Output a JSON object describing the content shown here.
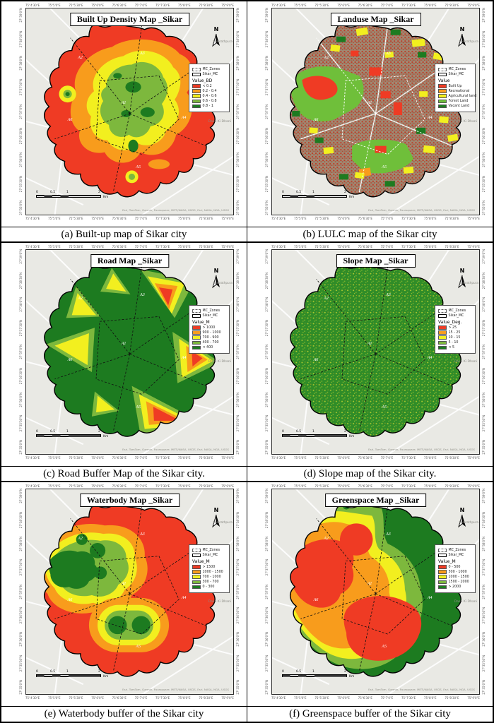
{
  "figure": {
    "north_label": "N",
    "place_near_north": "Samrathpura",
    "place_east": "Dasa Ki Dhani",
    "attribution": "Esri, TomTom, Garmin, Foursquare, METI/NASA, USGS, Esri, NASA, NGA, USGS",
    "scalebar": {
      "labels": [
        "0",
        "0.5",
        "1",
        "2"
      ],
      "unit": "Km"
    },
    "ticks": {
      "top": [
        "75°4'30\"E",
        "75°5'0\"E",
        "75°5'30\"E",
        "75°6'0\"E",
        "75°6'30\"E",
        "75°7'0\"E",
        "75°7'30\"E",
        "75°8'0\"E",
        "75°8'30\"E",
        "75°9'0\"E"
      ],
      "side": [
        "27°39'0\"N",
        "27°38'30\"N",
        "27°38'0\"N",
        "27°37'30\"N",
        "27°37'0\"N",
        "27°36'30\"N",
        "27°36'0\"N",
        "27°35'30\"N",
        "27°35'0\"N"
      ]
    }
  },
  "panels": [
    {
      "id": "a",
      "title": "Built Up Density Map _Sikar",
      "caption": "(a)  Built-up map of Sikar city",
      "legend": {
        "zones_label": "MC_Zones",
        "boundary_label": "Sikar_MC",
        "value_label": "Value_BD",
        "classes": [
          {
            "label": "< 0.2",
            "color": "#ef3b24"
          },
          {
            "label": "0.2 - 0.4",
            "color": "#f89c1c"
          },
          {
            "label": "0.4 - 0.6",
            "color": "#f2ef1f"
          },
          {
            "label": "0.6 - 0.8",
            "color": "#7db83d"
          },
          {
            "label": "0.8 - 1",
            "color": "#1d7b20"
          }
        ]
      },
      "zone_labels": [
        "A1",
        "A2",
        "A3",
        "A4",
        "A5",
        "A6"
      ]
    },
    {
      "id": "b",
      "title": "Landuse Map _Sikar",
      "caption": "(b)  LULC map of the Sikar city",
      "legend": {
        "zones_label": "MC_Zones",
        "boundary_label": "Sikar_MC",
        "value_label": "Value",
        "classes": [
          {
            "label": "Built Up",
            "color": "#ef3b24"
          },
          {
            "label": "Recreational",
            "color": "#f89c1c"
          },
          {
            "label": "Agricultural land",
            "color": "#f2ef1f"
          },
          {
            "label": "Forest Land",
            "color": "#6fbf3a"
          },
          {
            "label": "Vacant Land",
            "color": "#1d7b20"
          }
        ]
      },
      "zone_labels": [
        "A1",
        "A2",
        "A3",
        "A4",
        "A5",
        "A6"
      ]
    },
    {
      "id": "c",
      "title": "Road Map _Sikar",
      "caption": "(c) Road Buffer Map of the Sikar city.",
      "legend": {
        "zones_label": "MC_Zones",
        "boundary_label": "Sikar_MC",
        "value_label": "Value_M",
        "classes": [
          {
            "label": "> 1000",
            "color": "#ef3b24"
          },
          {
            "label": "900 - 1000",
            "color": "#f89c1c"
          },
          {
            "label": "700 - 900",
            "color": "#f2ef1f"
          },
          {
            "label": "400 - 700",
            "color": "#7db83d"
          },
          {
            "label": "< 400",
            "color": "#1d7b20"
          }
        ]
      },
      "zone_labels": [
        "A1",
        "A2",
        "A3",
        "A4",
        "A5",
        "A6"
      ]
    },
    {
      "id": "d",
      "title": "Slope Map _Sikar",
      "caption": "(d) Slope map of the Sikar city.",
      "legend": {
        "zones_label": "MC_Zones",
        "boundary_label": "Sikar_MC",
        "value_label": "Value_Deg.",
        "classes": [
          {
            "label": "> 25",
            "color": "#ef3b24"
          },
          {
            "label": "15 - 25",
            "color": "#f89c1c"
          },
          {
            "label": "10 - 15",
            "color": "#f2ef1f"
          },
          {
            "label": "5 - 10",
            "color": "#7db83d"
          },
          {
            "label": "< 5",
            "color": "#1d7b20"
          }
        ]
      },
      "zone_labels": [
        "A1",
        "A2",
        "A3",
        "A4",
        "A5",
        "A6"
      ]
    },
    {
      "id": "e",
      "title": "Waterbody Map _Sikar",
      "caption": "(e) Waterbody buffer of the Sikar city",
      "legend": {
        "zones_label": "MC_Zones",
        "boundary_label": "Sikar_MC",
        "value_label": "Value_M",
        "classes": [
          {
            "label": "> 1500",
            "color": "#ef3b24"
          },
          {
            "label": "1000 - 1500",
            "color": "#f89c1c"
          },
          {
            "label": "700 - 1000",
            "color": "#f2ef1f"
          },
          {
            "label": "300 - 700",
            "color": "#7db83d"
          },
          {
            "label": "0 - 300",
            "color": "#1d7b20"
          }
        ]
      },
      "zone_labels": [
        "A1",
        "A2",
        "A3",
        "A4",
        "A5",
        "A6"
      ]
    },
    {
      "id": "f",
      "title": "Greenspace Map _Sikar",
      "caption": "(f) Greenspace buffer of the Sikar city",
      "legend": {
        "zones_label": "MC_Zones",
        "boundary_label": "Sikar_MC",
        "value_label": "Value_M",
        "classes": [
          {
            "label": "0 - 500",
            "color": "#ef3b24"
          },
          {
            "label": "500 - 1000",
            "color": "#f89c1c"
          },
          {
            "label": "1000 - 1500",
            "color": "#f2ef1f"
          },
          {
            "label": "1500 - 2000",
            "color": "#7db83d"
          },
          {
            "label": "> 2000",
            "color": "#1d7b20"
          }
        ]
      },
      "zone_labels": [
        "A1",
        "A2",
        "A3",
        "A4",
        "A5",
        "A6"
      ]
    }
  ]
}
